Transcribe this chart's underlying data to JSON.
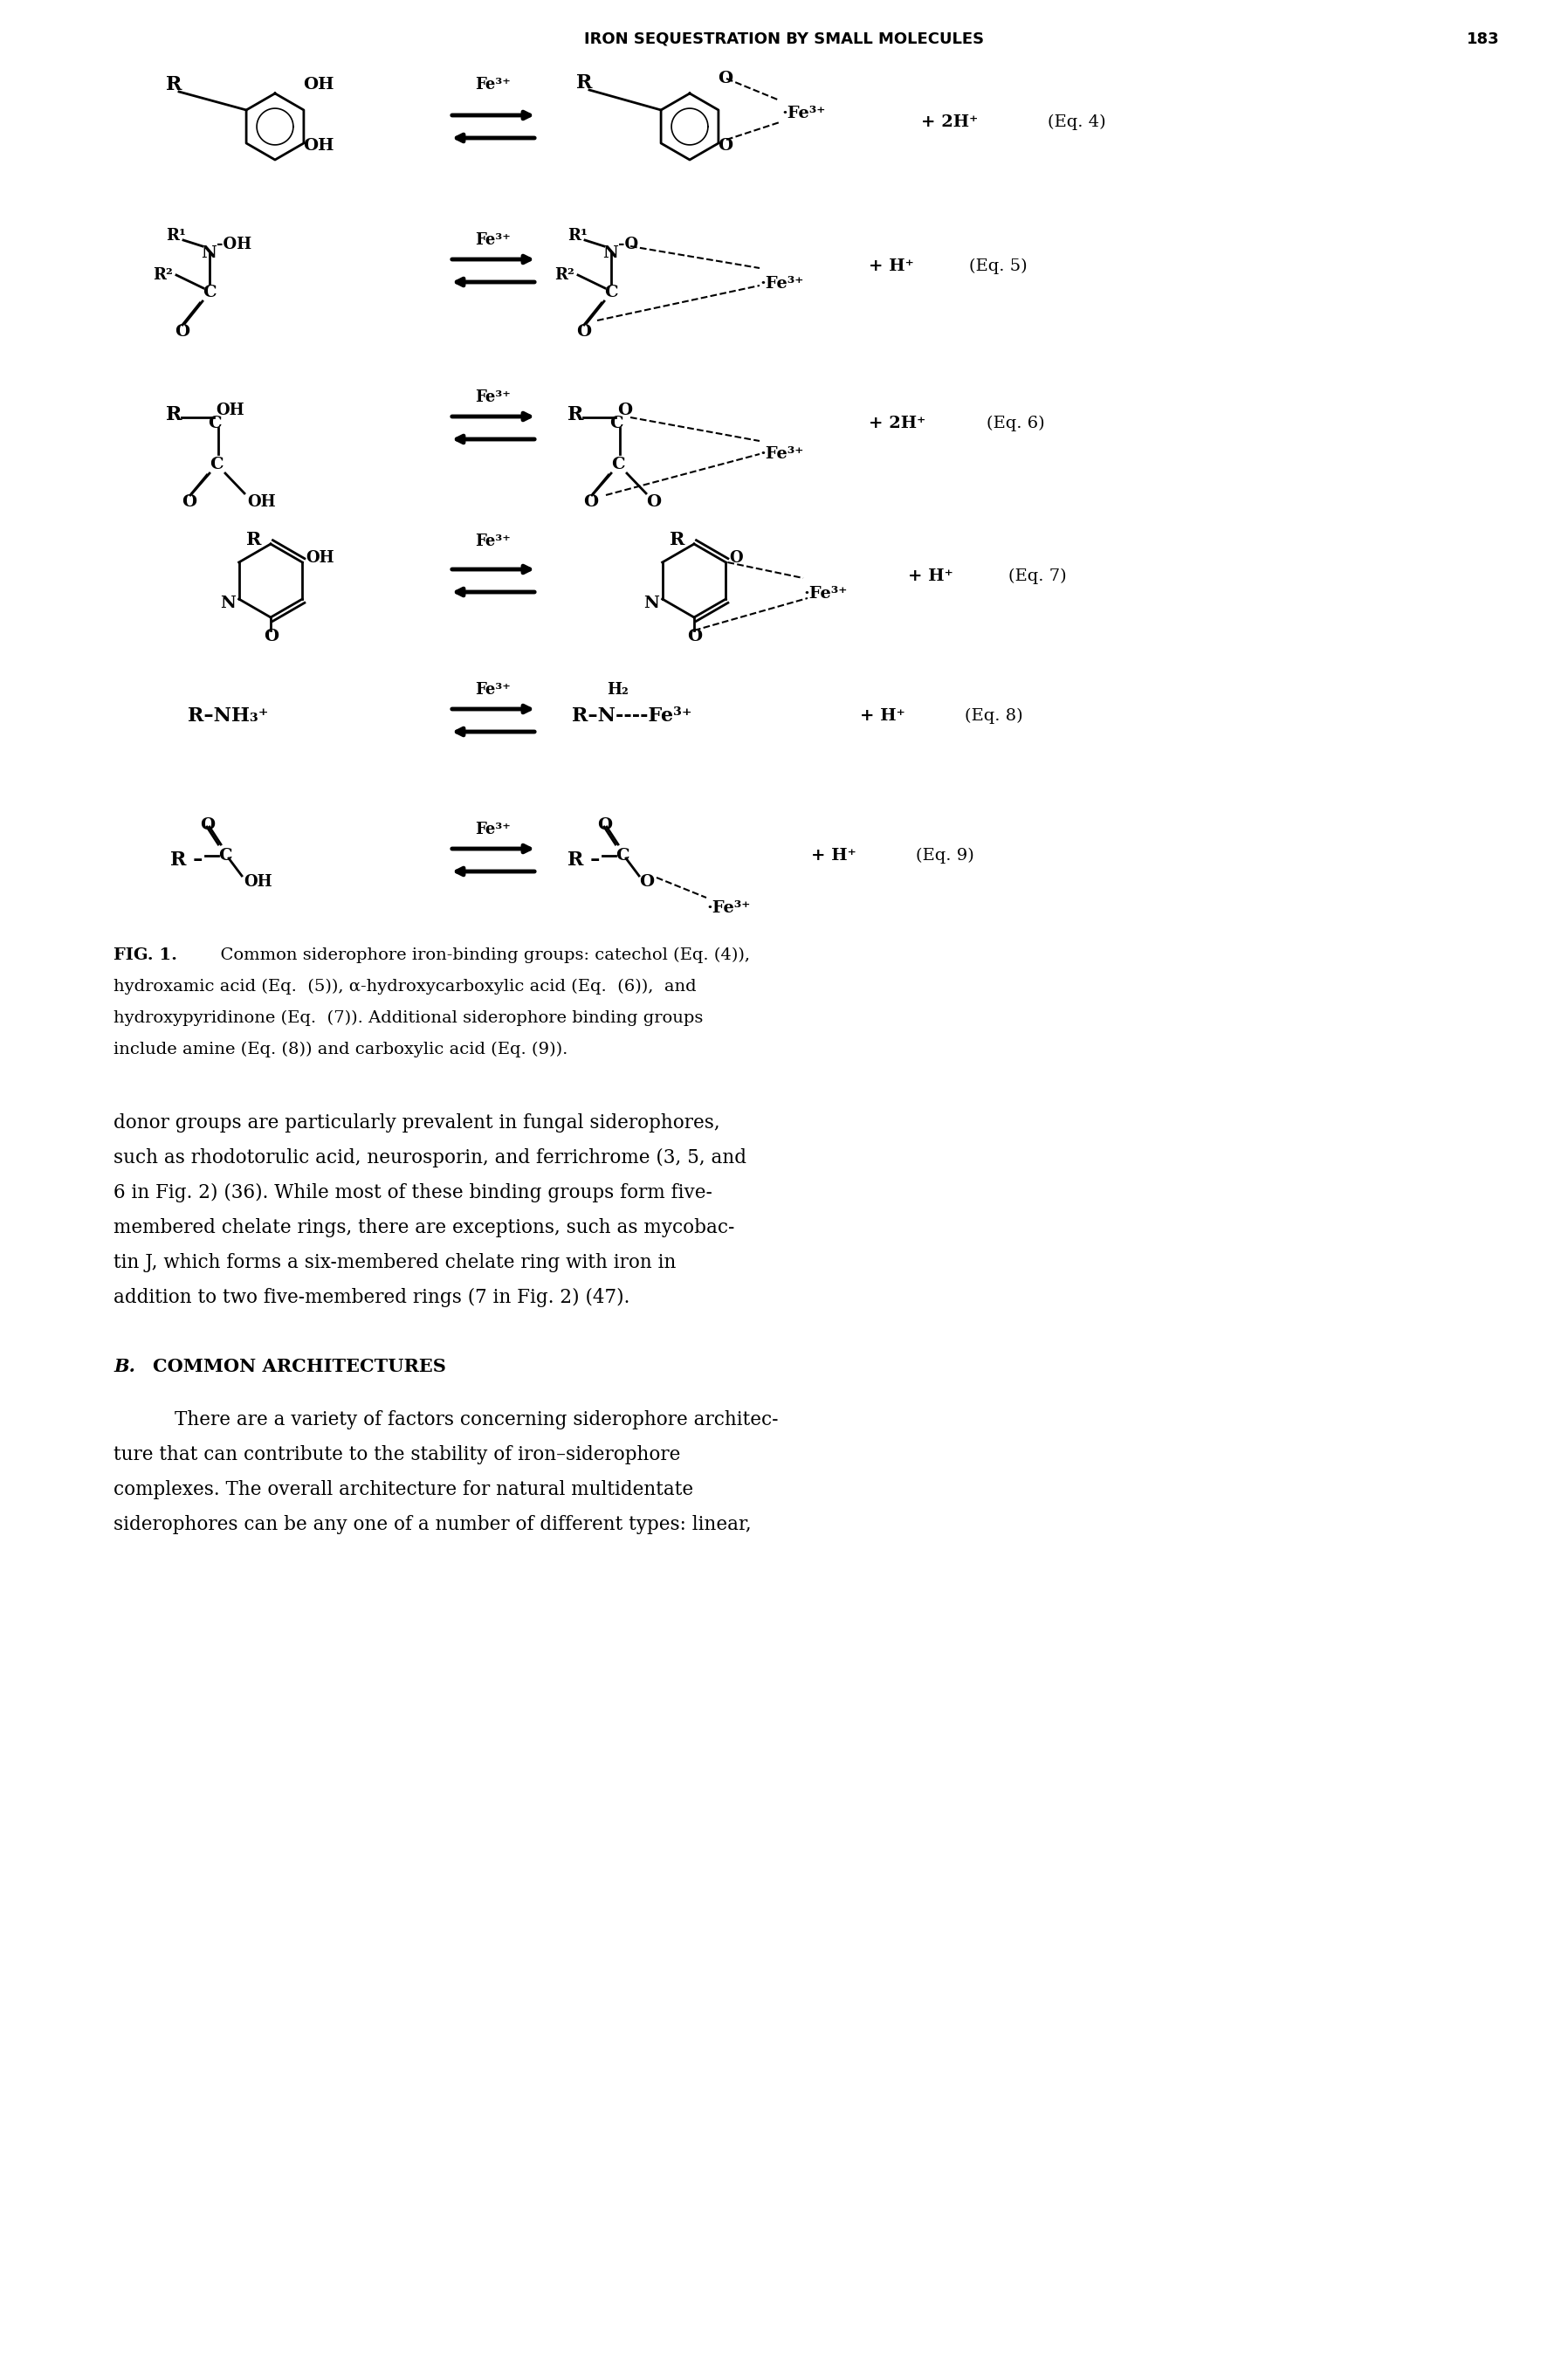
{
  "page_title": "IRON SEQUESTRATION BY SMALL MOLECULES",
  "page_number": "183",
  "background_color": "#ffffff",
  "text_color": "#000000",
  "body_text_lines": [
    "donor groups are particularly prevalent in fungal siderophores,",
    "such as rhodotorulic acid, neurosporin, and ferrichrome (3, 5, and",
    "6 in Fig. 2) (36). While most of these binding groups form five-",
    "membered chelate rings, there are exceptions, such as mycobac-",
    "tin J, which forms a six-membered chelate ring with iron in",
    "addition to two five-membered rings (7 in Fig. 2) (47)."
  ],
  "section_B_text": [
    "There are a variety of factors concerning siderophore architec-",
    "ture that can contribute to the stability of iron–siderophore",
    "complexes. The overall architecture for natural multidentate",
    "siderophores can be any one of a number of different types: linear,"
  ]
}
